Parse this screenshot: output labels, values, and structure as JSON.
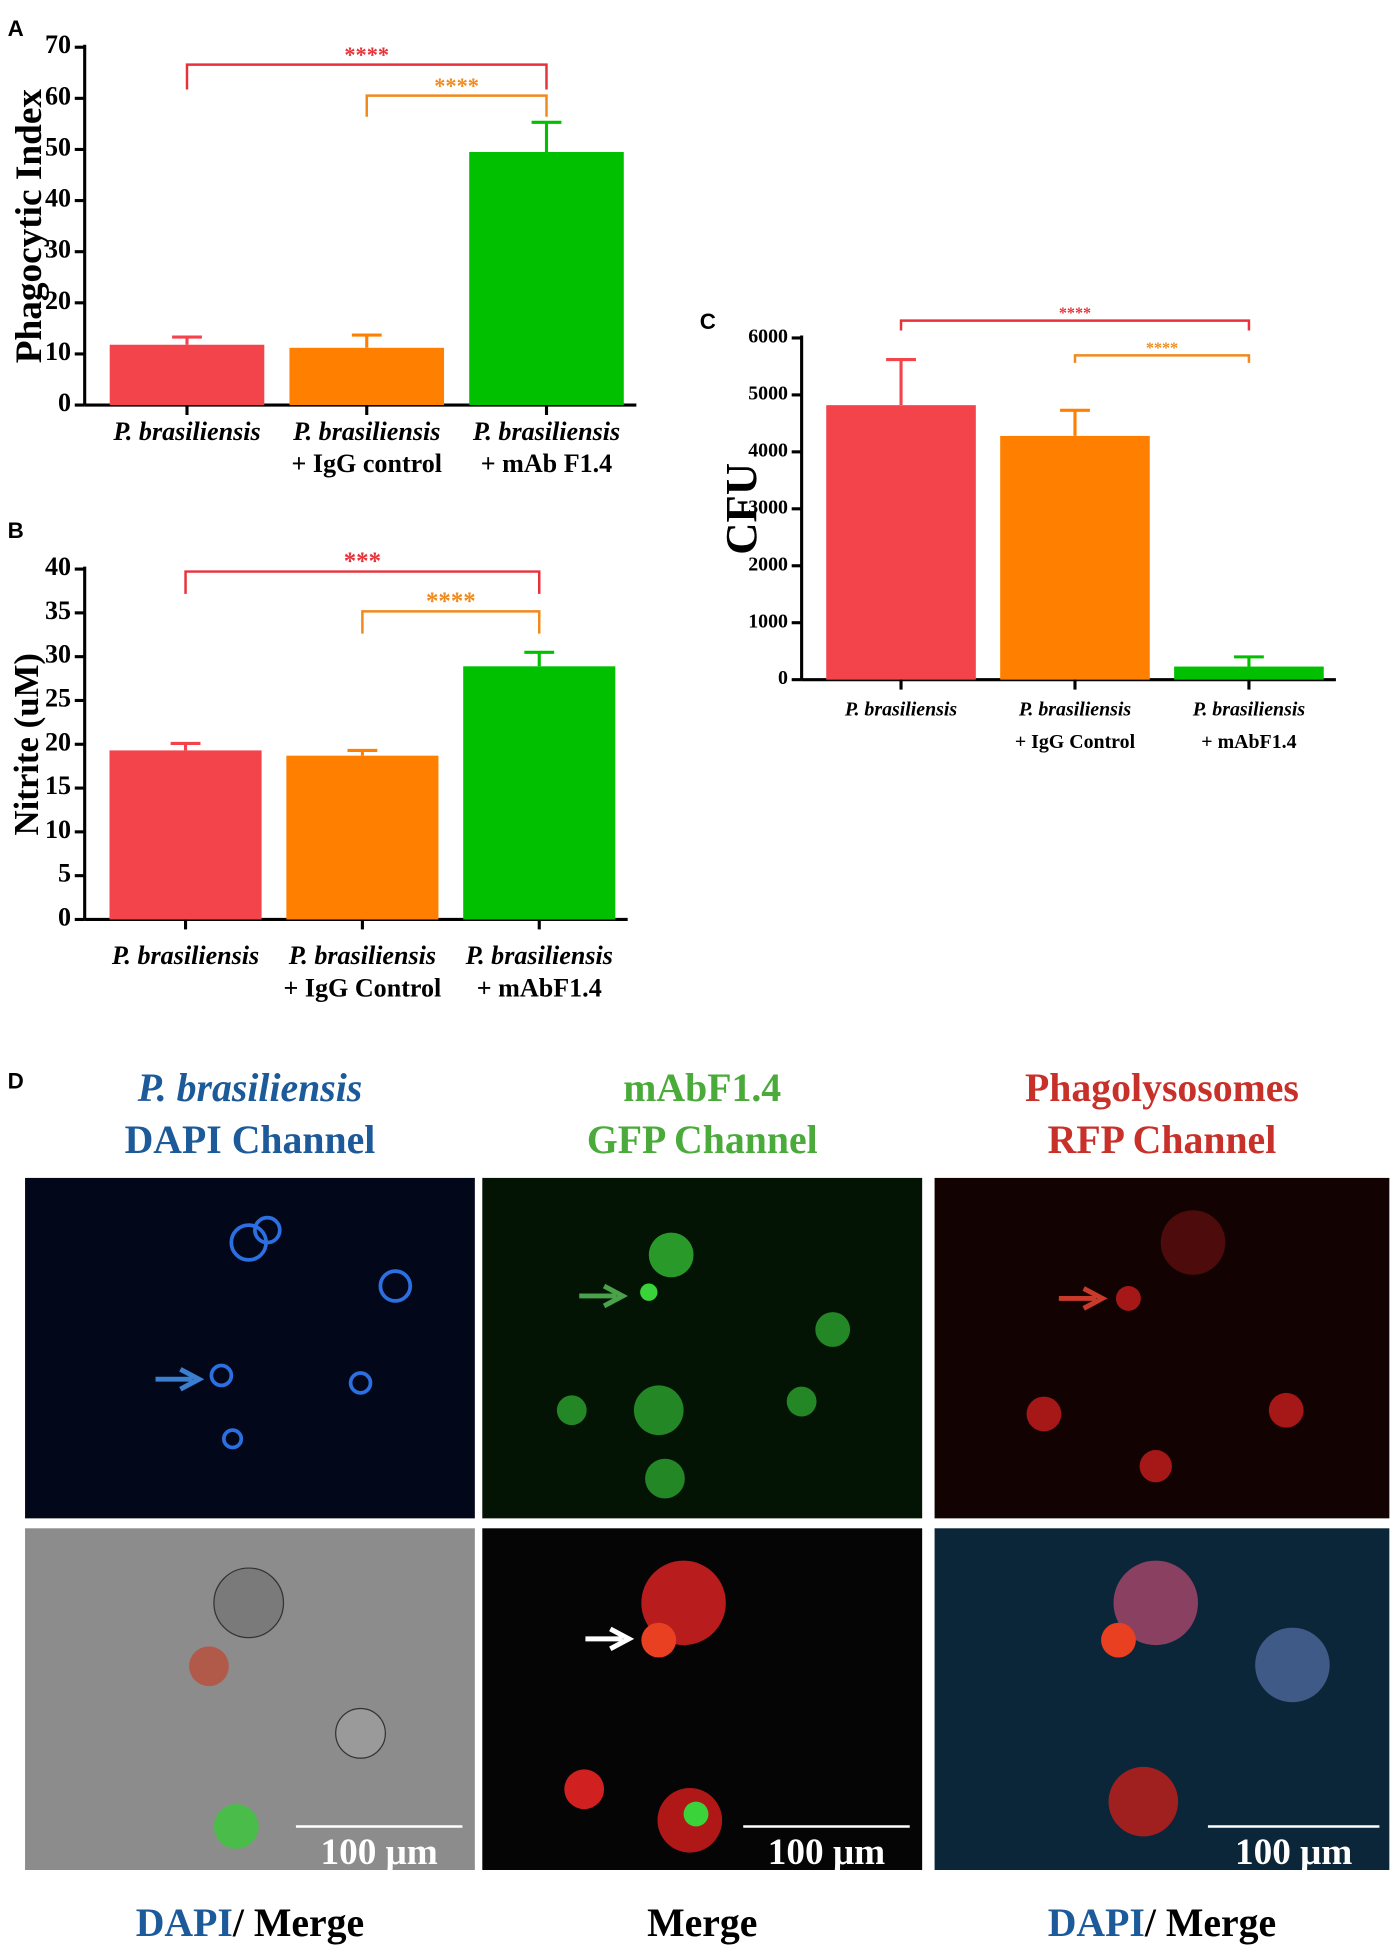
{
  "chart_data": [
    {
      "type": "bar",
      "panel": "A",
      "ylabel": "Phagocytic Index",
      "categories": [
        [
          "P. brasiliensis"
        ],
        [
          "P. brasiliensis",
          "+ IgG control"
        ],
        [
          "P. brasiliensis",
          "+ mAb F1.4"
        ]
      ],
      "values": [
        11.8,
        11.2,
        49.5
      ],
      "errors": [
        1.5,
        2.5,
        5.8
      ],
      "colors": [
        "#f2444a",
        "#ff8000",
        "#00c000"
      ],
      "ylim": [
        0,
        70
      ],
      "yticks": [
        0,
        10,
        20,
        30,
        40,
        50,
        60,
        70
      ],
      "significance": [
        {
          "from": 0,
          "to": 2,
          "label": "****",
          "color": "#e8323a"
        },
        {
          "from": 1,
          "to": 2,
          "label": "****",
          "color": "#f08a1c"
        }
      ]
    },
    {
      "type": "bar",
      "panel": "B",
      "ylabel": "Nitrite (uM)",
      "categories": [
        [
          "P. brasiliensis"
        ],
        [
          "P. brasiliensis",
          "+ IgG Control"
        ],
        [
          "P. brasiliensis",
          "+ mAbF1.4"
        ]
      ],
      "values": [
        19.3,
        18.7,
        28.9
      ],
      "errors": [
        0.8,
        0.6,
        1.6
      ],
      "colors": [
        "#f2444a",
        "#ff8000",
        "#00c000"
      ],
      "ylim": [
        0,
        40
      ],
      "yticks": [
        0,
        5,
        10,
        15,
        20,
        25,
        30,
        35,
        40
      ],
      "significance": [
        {
          "from": 0,
          "to": 2,
          "label": "***",
          "color": "#e8323a"
        },
        {
          "from": 1,
          "to": 2,
          "label": "****",
          "color": "#f08a1c"
        }
      ]
    },
    {
      "type": "bar",
      "panel": "C",
      "ylabel": "CFU",
      "categories": [
        [
          "P. brasiliensis"
        ],
        [
          "P. brasiliensis",
          "+ IgG Control"
        ],
        [
          "P. brasiliensis",
          "+ mAbF1.4"
        ]
      ],
      "values": [
        4820,
        4280,
        230
      ],
      "errors": [
        800,
        450,
        170
      ],
      "colors": [
        "#f2444a",
        "#ff8000",
        "#00c000"
      ],
      "ylim": [
        0,
        6000
      ],
      "yticks": [
        0,
        1000,
        2000,
        3000,
        4000,
        5000,
        6000
      ],
      "significance": [
        {
          "from": 0,
          "to": 2,
          "label": "****",
          "color": "#e8323a"
        },
        {
          "from": 1,
          "to": 2,
          "label": "****",
          "color": "#f08a1c"
        }
      ]
    }
  ],
  "panel_d": {
    "label": "D",
    "headers": [
      [
        "P. brasiliensis",
        "DAPI Channel"
      ],
      [
        "mAbF1.4",
        "GFP Channel"
      ],
      [
        "Phagolysosomes",
        "RFP Channel"
      ]
    ],
    "scale_bars": [
      "100 μm",
      "100 μm",
      "100 μm"
    ],
    "footers": [
      [
        "DAPI",
        "/ Merge"
      ],
      [
        "Merge"
      ],
      [
        "DAPI",
        "/ Merge"
      ]
    ]
  }
}
